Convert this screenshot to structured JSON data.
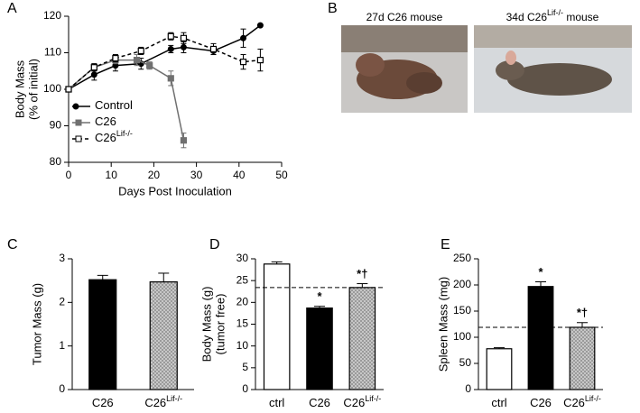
{
  "photo_panel": {
    "panel_label": "B",
    "photos": [
      {
        "caption": "27d C26 mouse"
      },
      {
        "caption_pre": "34d C26",
        "caption_sup": "Lif-/-",
        "caption_post": " mouse"
      }
    ]
  },
  "chart_data": [
    {
      "type": "line",
      "panel_label": "A",
      "ylabel": [
        "Body Mass",
        "(% of initial)"
      ],
      "xlabel": "Days Post Inoculation",
      "xlim": [
        0,
        50
      ],
      "xticks": [
        0,
        10,
        20,
        30,
        40,
        50
      ],
      "ylim": [
        80,
        120
      ],
      "yticks": [
        80,
        90,
        100,
        110,
        120
      ],
      "series": [
        {
          "name": "Control",
          "color": "#000000",
          "marker": "circle",
          "marker_fill": true,
          "dash": false,
          "x": [
            0,
            6,
            11,
            17,
            24,
            27,
            34,
            41,
            45
          ],
          "values": [
            100,
            104,
            106.5,
            107,
            111,
            111.5,
            110.5,
            114,
            117.5
          ],
          "errors": [
            0,
            1.5,
            1.5,
            1.5,
            1,
            1.5,
            1,
            2.5,
            0
          ]
        },
        {
          "name": "C26",
          "color": "#707070",
          "marker": "square",
          "marker_fill": true,
          "dash": false,
          "x": [
            0,
            6,
            11,
            16,
            19,
            24,
            27
          ],
          "values": [
            100,
            106,
            108,
            108,
            106.5,
            103,
            86
          ],
          "errors": [
            0,
            1,
            1,
            1.5,
            1,
            2,
            2
          ]
        },
        {
          "name": "C26",
          "name_sup": "Lif-/-",
          "color": "#000000",
          "marker": "square",
          "marker_fill": false,
          "dash": true,
          "x": [
            0,
            6,
            11,
            17,
            24,
            27,
            34,
            41,
            45
          ],
          "values": [
            100,
            106,
            108.5,
            110.5,
            114.5,
            114,
            111,
            107.5,
            108
          ],
          "errors": [
            0,
            1,
            1,
            1,
            1,
            1.5,
            1.5,
            2,
            3
          ]
        }
      ]
    },
    {
      "type": "bar",
      "panel_label": "C",
      "ylabel": [
        "Tumor Mass (g)"
      ],
      "categories": [
        "C26",
        "C26"
      ],
      "category_superscripts": [
        null,
        "Lif-/-"
      ],
      "values": [
        2.52,
        2.47
      ],
      "errors": [
        0.1,
        0.2
      ],
      "colors": [
        "#000000",
        "#b8b8b8"
      ],
      "hatch": [
        false,
        true
      ],
      "ylim": [
        0,
        3
      ],
      "yticks": [
        0,
        1,
        2,
        3
      ]
    },
    {
      "type": "bar",
      "panel_label": "D",
      "ylabel": [
        "Body Mass (g)",
        "(tumor free)"
      ],
      "categories": [
        "ctrl",
        "C26",
        "C26"
      ],
      "category_superscripts": [
        null,
        null,
        "Lif-/-"
      ],
      "values": [
        28.8,
        18.7,
        23.4
      ],
      "errors": [
        0.5,
        0.4,
        0.9
      ],
      "colors": [
        "#ffffff",
        "#000000",
        "#b8b8b8"
      ],
      "hatch": [
        false,
        false,
        true
      ],
      "annotations": [
        null,
        "*",
        "*†"
      ],
      "reference_line": 23.4,
      "ylim": [
        0,
        30
      ],
      "yticks": [
        0,
        5,
        10,
        15,
        20,
        25,
        30
      ]
    },
    {
      "type": "bar",
      "panel_label": "E",
      "ylabel": [
        "Spleen Mass (mg)"
      ],
      "categories": [
        "ctrl",
        "C26",
        "C26"
      ],
      "category_superscripts": [
        null,
        null,
        "Lif-/-"
      ],
      "values": [
        78,
        197,
        119
      ],
      "errors": [
        2,
        9,
        9
      ],
      "colors": [
        "#ffffff",
        "#000000",
        "#b8b8b8"
      ],
      "hatch": [
        false,
        false,
        true
      ],
      "annotations": [
        null,
        "*",
        "*†"
      ],
      "reference_line": 119,
      "ylim": [
        0,
        250
      ],
      "yticks": [
        0,
        50,
        100,
        150,
        200,
        250
      ]
    }
  ]
}
